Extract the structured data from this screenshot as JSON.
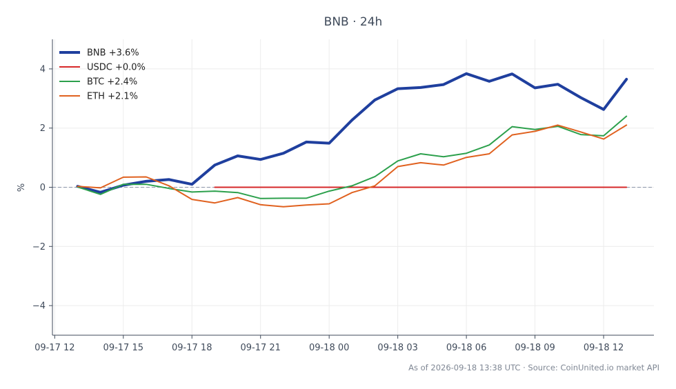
{
  "chart_data": {
    "type": "line",
    "title": "BNB · 24h",
    "xlabel": "",
    "ylabel": "%",
    "x_ticks": [
      {
        "t": 0,
        "label": "09-17 12"
      },
      {
        "t": 3,
        "label": "09-17 15"
      },
      {
        "t": 6,
        "label": "09-17 18"
      },
      {
        "t": 9,
        "label": "09-17 21"
      },
      {
        "t": 12,
        "label": "09-18 00"
      },
      {
        "t": 15,
        "label": "09-18 03"
      },
      {
        "t": 18,
        "label": "09-18 06"
      },
      {
        "t": 21,
        "label": "09-18 09"
      },
      {
        "t": 24,
        "label": "09-18 12"
      }
    ],
    "y_ticks": [
      {
        "v": 4,
        "label": "4"
      },
      {
        "v": 2,
        "label": "2"
      },
      {
        "v": 0,
        "label": "0"
      },
      {
        "v": -2,
        "label": "−2"
      },
      {
        "v": -4,
        "label": "−4"
      }
    ],
    "xlim": [
      -0.1,
      26.2
    ],
    "ylim": [
      -5,
      5
    ],
    "grid": true,
    "zero_line": true,
    "legend_position": "top-left",
    "series": [
      {
        "name": "BNB +3.6%",
        "color": "#1f3f9e",
        "width": 4,
        "x": [
          1,
          2,
          3,
          4,
          5,
          6,
          7,
          8,
          9,
          10,
          11,
          12,
          13,
          14,
          15,
          16,
          17,
          18,
          19,
          20,
          21,
          22,
          23,
          24,
          25
        ],
        "values": [
          0.03,
          -0.17,
          0.07,
          0.2,
          0.26,
          0.1,
          0.75,
          1.06,
          0.94,
          1.15,
          1.53,
          1.49,
          2.27,
          2.95,
          3.33,
          3.37,
          3.47,
          3.84,
          3.58,
          3.83,
          3.36,
          3.48,
          3.03,
          2.63,
          3.65
        ]
      },
      {
        "name": "USDC +0.0%",
        "color": "#d62728",
        "width": 2,
        "x": [
          7,
          8,
          9,
          10,
          11,
          12,
          13,
          14,
          15,
          16,
          17,
          18,
          19,
          20,
          21,
          22,
          23,
          24,
          25
        ],
        "values": [
          0,
          0,
          0,
          0,
          0,
          0,
          0,
          0,
          0,
          0,
          0,
          0,
          0,
          0,
          0,
          0,
          0,
          0,
          0
        ]
      },
      {
        "name": "BTC +2.4%",
        "color": "#2ca04c",
        "width": 2,
        "x": [
          1,
          2,
          3,
          4,
          5,
          6,
          7,
          8,
          9,
          10,
          11,
          12,
          13,
          14,
          15,
          16,
          17,
          18,
          19,
          20,
          21,
          22,
          23,
          24,
          25
        ],
        "values": [
          0.01,
          -0.24,
          0.1,
          0.1,
          -0.04,
          -0.16,
          -0.13,
          -0.18,
          -0.38,
          -0.37,
          -0.37,
          -0.13,
          0.05,
          0.36,
          0.89,
          1.13,
          1.03,
          1.15,
          1.43,
          2.05,
          1.95,
          2.06,
          1.78,
          1.74,
          2.4
        ]
      },
      {
        "name": "ETH +2.1%",
        "color": "#e0611f",
        "width": 2,
        "x": [
          1,
          2,
          3,
          4,
          5,
          6,
          7,
          8,
          9,
          10,
          11,
          12,
          13,
          14,
          15,
          16,
          17,
          18,
          19,
          20,
          21,
          22,
          23,
          24,
          25
        ],
        "values": [
          0.03,
          -0.02,
          0.34,
          0.35,
          0.05,
          -0.41,
          -0.53,
          -0.35,
          -0.59,
          -0.66,
          -0.6,
          -0.56,
          -0.18,
          0.05,
          0.7,
          0.83,
          0.75,
          1.01,
          1.13,
          1.77,
          1.89,
          2.1,
          1.87,
          1.63,
          2.1
        ]
      }
    ]
  },
  "footer": "As of 2026-09-18 13:38 UTC · Source: CoinUnited.io market API"
}
